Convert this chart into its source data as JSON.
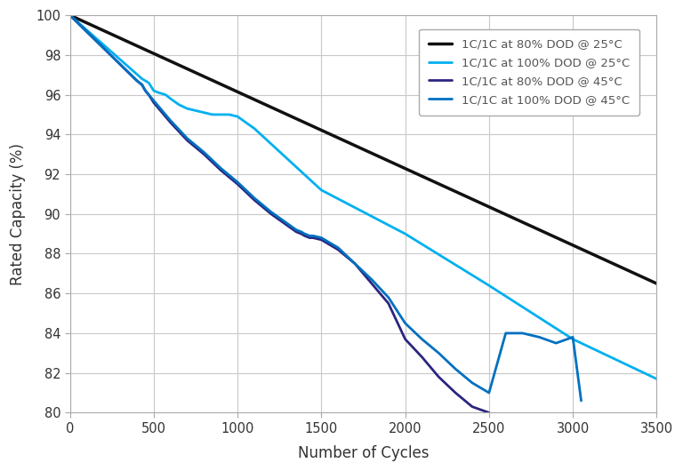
{
  "xlabel": "Number of Cycles",
  "ylabel": "Rated Capacity (%)",
  "xlim": [
    0,
    3500
  ],
  "ylim": [
    80,
    100
  ],
  "xticks": [
    0,
    500,
    1000,
    1500,
    2000,
    2500,
    3000,
    3500
  ],
  "yticks": [
    80,
    82,
    84,
    86,
    88,
    90,
    92,
    94,
    96,
    98,
    100
  ],
  "background_color": "#ffffff",
  "grid_color": "#c8c8c8",
  "series": [
    {
      "label": "1C/1C at 80% DOD @ 25°C",
      "color": "#111111",
      "linewidth": 2.5,
      "x": [
        0,
        3500
      ],
      "y": [
        100,
        86.5
      ]
    },
    {
      "label": "1C/1C at 100% DOD @ 25°C",
      "color": "#00b0f0",
      "linewidth": 2.0,
      "x": [
        0,
        430,
        470,
        500,
        530,
        570,
        600,
        650,
        700,
        750,
        800,
        850,
        900,
        950,
        1000,
        1050,
        1100,
        1500,
        2000,
        2500,
        3000,
        3500
      ],
      "y": [
        100,
        96.8,
        96.6,
        96.2,
        96.1,
        96.0,
        95.8,
        95.5,
        95.3,
        95.2,
        95.1,
        95.0,
        95.0,
        95.0,
        94.9,
        94.6,
        94.3,
        91.2,
        89.0,
        86.4,
        83.7,
        81.7
      ]
    },
    {
      "label": "1C/1C at 80% DOD @ 45°C",
      "color": "#2b2580",
      "linewidth": 2.0,
      "x": [
        0,
        400,
        430,
        450,
        470,
        500,
        550,
        600,
        700,
        800,
        900,
        1000,
        1100,
        1200,
        1350,
        1380,
        1400,
        1430,
        1450,
        1500,
        1600,
        1700,
        1800,
        1900,
        2000,
        2100,
        2200,
        2300,
        2400,
        2500
      ],
      "y": [
        100,
        96.7,
        96.5,
        96.2,
        96.0,
        95.6,
        95.1,
        94.6,
        93.7,
        93.0,
        92.2,
        91.5,
        90.7,
        90.0,
        89.1,
        89.0,
        88.9,
        88.8,
        88.8,
        88.7,
        88.2,
        87.5,
        86.5,
        85.5,
        83.7,
        82.8,
        81.8,
        81.0,
        80.3,
        80.0
      ]
    },
    {
      "label": "1C/1C at 100% DOD @ 45°C",
      "color": "#0070c0",
      "linewidth": 2.0,
      "x": [
        0,
        400,
        430,
        450,
        470,
        500,
        550,
        600,
        700,
        800,
        900,
        1000,
        1100,
        1200,
        1350,
        1380,
        1400,
        1430,
        1450,
        1500,
        1600,
        1700,
        1800,
        1900,
        2000,
        2100,
        2200,
        2300,
        2400,
        2500,
        2600,
        2700,
        2800,
        2900,
        3000,
        3050
      ],
      "y": [
        100,
        96.7,
        96.5,
        96.2,
        96.0,
        95.7,
        95.2,
        94.7,
        93.8,
        93.1,
        92.3,
        91.6,
        90.8,
        90.1,
        89.2,
        89.1,
        89.0,
        88.9,
        88.9,
        88.8,
        88.3,
        87.5,
        86.7,
        85.8,
        84.5,
        83.7,
        83.0,
        82.2,
        81.5,
        81.0,
        84.0,
        84.0,
        83.8,
        83.5,
        83.8,
        80.6
      ]
    }
  ],
  "legend_loc": "upper right",
  "legend_fontsize": 9.5,
  "tick_fontsize": 10.5,
  "axis_label_fontsize": 12
}
